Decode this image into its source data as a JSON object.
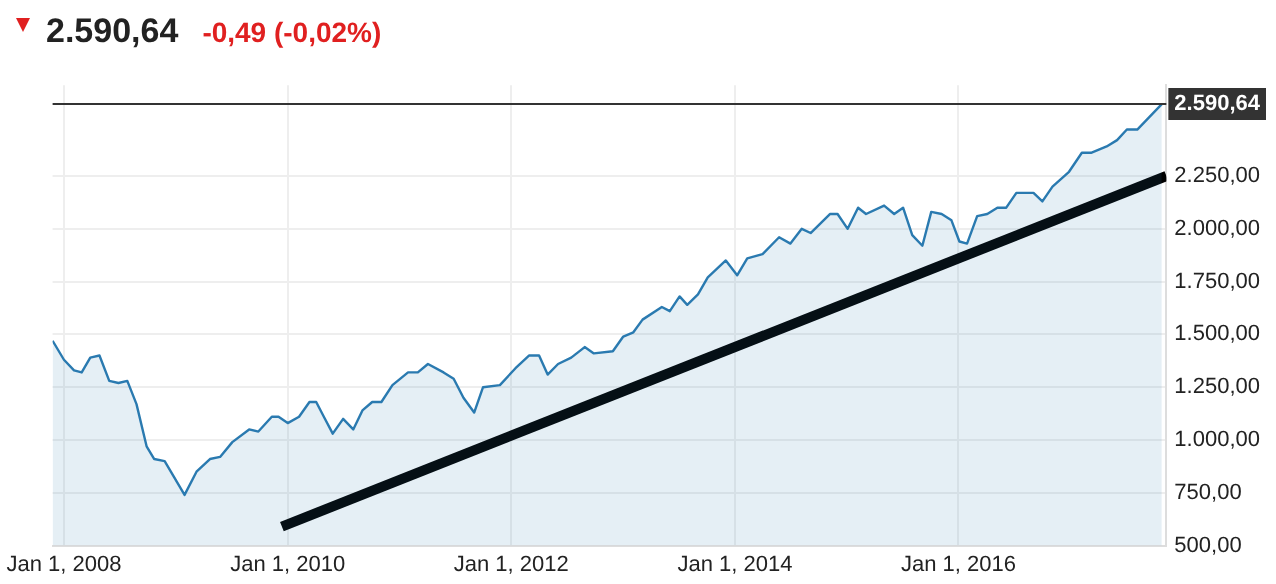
{
  "chart_data": {
    "type": "area",
    "title": "2.590,64",
    "subtitle": "-0,49 (-0,02%)",
    "series": [
      {
        "type": "area",
        "color": "#2a7ab0",
        "x": [
          "2007-11-25",
          "2008-01-01",
          "2008-02-03",
          "2008-02-28",
          "2008-03-27",
          "2008-04-26",
          "2008-05-28",
          "2008-06-27",
          "2008-07-26",
          "2008-08-25",
          "2008-09-27",
          "2008-10-22",
          "2008-11-25",
          "2009-01-29",
          "2009-03-09",
          "2009-04-22",
          "2009-05-25",
          "2009-07-04",
          "2009-08-28",
          "2009-09-27",
          "2009-11-10",
          "2009-12-02",
          "2010-01-01",
          "2010-02-07",
          "2010-03-13",
          "2010-04-04",
          "2010-04-29",
          "2010-05-28",
          "2010-07-01",
          "2010-08-03",
          "2010-09-02",
          "2010-10-04",
          "2010-11-03",
          "2010-12-09",
          "2011-01-29",
          "2011-03-02",
          "2011-04-04",
          "2011-05-25",
          "2011-06-27",
          "2011-07-29",
          "2011-09-02",
          "2011-10-01",
          "2011-11-25",
          "2012-01-15",
          "2012-02-28",
          "2012-04-01",
          "2012-04-29",
          "2012-06-02",
          "2012-07-15",
          "2012-08-28",
          "2012-09-27",
          "2012-11-28",
          "2013-01-01",
          "2013-02-03",
          "2013-03-05",
          "2013-05-07",
          "2013-06-02",
          "2013-07-04",
          "2013-07-29",
          "2013-09-02",
          "2013-10-04",
          "2013-12-02",
          "2014-01-08",
          "2014-02-10",
          "2014-04-01",
          "2014-05-25",
          "2014-07-01",
          "2014-08-07",
          "2014-09-05",
          "2014-11-07",
          "2014-12-02",
          "2015-01-04",
          "2015-02-07",
          "2015-03-05",
          "2015-05-03",
          "2015-06-05",
          "2015-07-04",
          "2015-08-03",
          "2015-09-05",
          "2015-10-04",
          "2015-11-07",
          "2015-12-09",
          "2016-01-04",
          "2016-01-29",
          "2016-03-02",
          "2016-04-04",
          "2016-05-07",
          "2016-06-05",
          "2016-07-08",
          "2016-09-02",
          "2016-10-01",
          "2016-11-03",
          "2016-12-27",
          "2017-02-07",
          "2017-03-09",
          "2017-04-29",
          "2017-06-02",
          "2017-07-04",
          "2017-08-07",
          "2017-09-16",
          "2017-10-26"
        ],
        "values": [
          1470,
          1380,
          1330,
          1320,
          1390,
          1400,
          1280,
          1270,
          1280,
          1170,
          970,
          910,
          900,
          740,
          850,
          910,
          920,
          990,
          1050,
          1040,
          1110,
          1110,
          1080,
          1110,
          1180,
          1180,
          1110,
          1030,
          1100,
          1050,
          1140,
          1180,
          1180,
          1260,
          1320,
          1320,
          1360,
          1320,
          1290,
          1200,
          1130,
          1250,
          1260,
          1340,
          1400,
          1400,
          1310,
          1360,
          1390,
          1440,
          1410,
          1420,
          1490,
          1510,
          1570,
          1630,
          1610,
          1680,
          1640,
          1690,
          1770,
          1850,
          1780,
          1860,
          1880,
          1960,
          1930,
          2000,
          1980,
          2070,
          2070,
          2000,
          2100,
          2070,
          2110,
          2070,
          2100,
          1970,
          1920,
          2080,
          2070,
          2040,
          1940,
          1930,
          2060,
          2070,
          2100,
          2100,
          2170,
          2170,
          2130,
          2200,
          2270,
          2360,
          2360,
          2390,
          2420,
          2470,
          2470,
          2530,
          2590.64
        ]
      },
      {
        "type": "line",
        "color": "#000000",
        "x": [
          "2009-12-13",
          "2017-11-10"
        ],
        "values": [
          590,
          2250
        ]
      }
    ],
    "xlim": [
      "2007-11-25",
      "2017-11-10"
    ],
    "xticks": [
      {
        "value": "2008-01-01",
        "label": "Jan 1, 2008"
      },
      {
        "value": "2010-01-01",
        "label": "Jan 1, 2010"
      },
      {
        "value": "2012-01-01",
        "label": "Jan 1, 2012"
      },
      {
        "value": "2014-01-01",
        "label": "Jan 1, 2014"
      },
      {
        "value": "2016-01-01",
        "label": "Jan 1, 2016"
      }
    ],
    "ylim": [
      500,
      2680
    ],
    "yticks": [
      {
        "value": 500,
        "label": "500,00"
      },
      {
        "value": 750,
        "label": "750,00"
      },
      {
        "value": 1000,
        "label": "1.000,00"
      },
      {
        "value": 1250,
        "label": "1.250,00"
      },
      {
        "value": 1500,
        "label": "1.500,00"
      },
      {
        "value": 1750,
        "label": "1.750,00"
      },
      {
        "value": 2000,
        "label": "2.000,00"
      },
      {
        "value": 2250,
        "label": "2.250,00"
      }
    ],
    "ref_lines": [
      {
        "axis": "y",
        "value": 2590.64,
        "label": "2.590,64",
        "color": "#333333"
      }
    ],
    "grid": true,
    "marker": "none",
    "line_style": "solid"
  }
}
